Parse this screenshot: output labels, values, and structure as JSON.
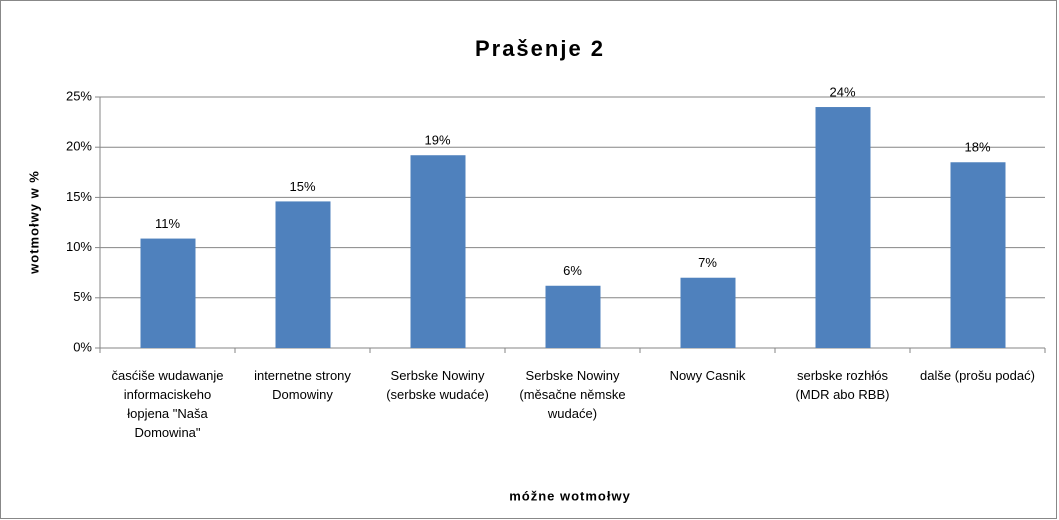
{
  "chart_data": {
    "type": "bar",
    "title": "Prašenje 2",
    "x_label": "móžne wotmołwy",
    "y_label": "wotmołwy w %",
    "categories": [
      "časćiše wudawanje informaciskeho łopjena \"Naša Domowina\"",
      "internetne strony Domowiny",
      "Serbske Nowiny (serbske wudaće)",
      "Serbske Nowiny (měsačne němske wudaće)",
      "Nowy Casnik",
      "serbske rozhłós (MDR abo RBB)",
      "dalše (prošu podać)"
    ],
    "values": [
      10.9,
      14.6,
      19.2,
      6.2,
      7.0,
      24.0,
      18.5
    ],
    "value_labels": [
      "11%",
      "15%",
      "19%",
      "6%",
      "7%",
      "24%",
      "18%"
    ],
    "color": "#4f81bd",
    "ylim": [
      0,
      25
    ],
    "yticks": [
      {
        "value": 0,
        "label": "0%"
      },
      {
        "value": 5,
        "label": "5%"
      },
      {
        "value": 10,
        "label": "10%"
      },
      {
        "value": 15,
        "label": "15%"
      },
      {
        "value": 20,
        "label": "20%"
      },
      {
        "value": 25,
        "label": "25%"
      }
    ],
    "grid": true
  }
}
